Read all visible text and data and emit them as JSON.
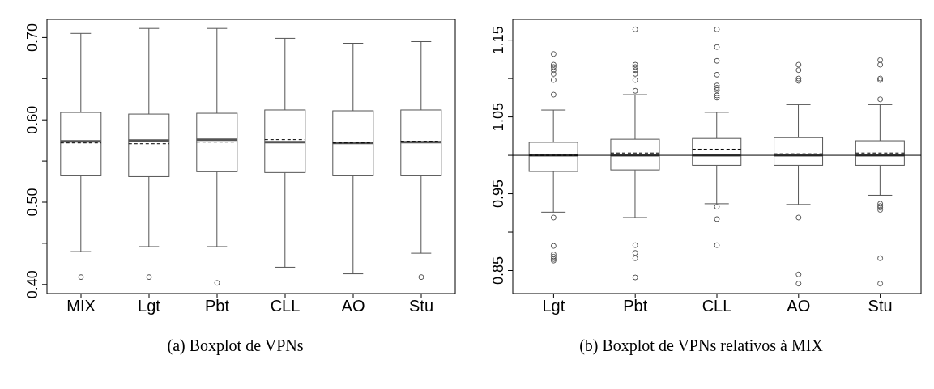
{
  "chart_data": [
    {
      "type": "box",
      "annotations": [
        "(a) Boxplot de VPNs"
      ],
      "categories": [
        "MIX",
        "Lgt",
        "Pbt",
        "CLL",
        "AO",
        "Stu"
      ],
      "color": "#555555",
      "ylim": [
        0.389,
        0.722
      ],
      "yticks": [
        {
          "value": 0.4,
          "label": "0.40"
        },
        {
          "value": 0.45,
          "label": null
        },
        {
          "value": 0.5,
          "label": "0.50"
        },
        {
          "value": 0.55,
          "label": null
        },
        {
          "value": 0.6,
          "label": "0.60"
        },
        {
          "value": 0.65,
          "label": null
        },
        {
          "value": 0.7,
          "label": "0.70"
        }
      ],
      "boxes": [
        {
          "low": 0.44,
          "q1": 0.532,
          "median": 0.574,
          "q3": 0.609,
          "high": 0.705,
          "mean": 0.572,
          "outliers": [
            0.409
          ]
        },
        {
          "low": 0.446,
          "q1": 0.531,
          "median": 0.575,
          "q3": 0.607,
          "high": 0.711,
          "mean": 0.571,
          "outliers": [
            0.409
          ]
        },
        {
          "low": 0.446,
          "q1": 0.537,
          "median": 0.576,
          "q3": 0.608,
          "high": 0.711,
          "mean": 0.573,
          "outliers": [
            0.402
          ]
        },
        {
          "low": 0.421,
          "q1": 0.536,
          "median": 0.573,
          "q3": 0.612,
          "high": 0.699,
          "mean": 0.576
        },
        {
          "low": 0.413,
          "q1": 0.532,
          "median": 0.572,
          "q3": 0.611,
          "high": 0.693,
          "mean": 0.572
        },
        {
          "low": 0.438,
          "q1": 0.532,
          "median": 0.573,
          "q3": 0.612,
          "high": 0.695,
          "mean": 0.574,
          "outliers": [
            0.409
          ]
        }
      ]
    },
    {
      "type": "box",
      "annotations": [
        "(b) Boxplot de VPNs relativos à MIX"
      ],
      "categories": [
        "Lgt",
        "Pbt",
        "CLL",
        "AO",
        "Stu"
      ],
      "color": "#555555",
      "ylim": [
        0.82,
        1.177
      ],
      "yticks": [
        0.85,
        {
          "value": 0.9,
          "label": null
        },
        0.95,
        {
          "value": 1.0,
          "label": null
        },
        1.05,
        {
          "value": 1.1,
          "label": null
        },
        1.15
      ],
      "ref_lines": [
        {
          "axis": "y",
          "value": 1.0,
          "color": "#000000"
        }
      ],
      "boxes": [
        {
          "low": 0.926,
          "q1": 0.979,
          "median": 1.0,
          "q3": 1.017,
          "high": 1.059,
          "mean": 1.0,
          "outliers": [
            1.132,
            1.118,
            1.115,
            1.111,
            1.106,
            1.098,
            1.079,
            0.919,
            0.882,
            0.871,
            0.868,
            0.865,
            0.863
          ]
        },
        {
          "low": 0.919,
          "q1": 0.981,
          "median": 1.0,
          "q3": 1.021,
          "high": 1.079,
          "mean": 1.003,
          "outliers": [
            1.164,
            1.118,
            1.115,
            1.111,
            1.106,
            1.098,
            1.084,
            0.883,
            0.873,
            0.866,
            0.841
          ]
        },
        {
          "low": 0.937,
          "q1": 0.987,
          "median": 1.0,
          "q3": 1.022,
          "high": 1.056,
          "mean": 1.008,
          "outliers": [
            1.164,
            1.141,
            1.123,
            1.105,
            1.091,
            1.088,
            1.085,
            1.078,
            1.075,
            0.933,
            0.917,
            0.883
          ]
        },
        {
          "low": 0.936,
          "q1": 0.987,
          "median": 1.0,
          "q3": 1.023,
          "high": 1.066,
          "mean": 1.002,
          "outliers": [
            1.118,
            1.111,
            1.1,
            1.097,
            0.919,
            0.845,
            0.833
          ]
        },
        {
          "low": 0.948,
          "q1": 0.987,
          "median": 1.0,
          "q3": 1.019,
          "high": 1.066,
          "mean": 1.003,
          "outliers": [
            1.124,
            1.118,
            1.1,
            1.098,
            1.073,
            0.937,
            0.934,
            0.932,
            0.929,
            0.866,
            0.833
          ]
        }
      ]
    }
  ]
}
